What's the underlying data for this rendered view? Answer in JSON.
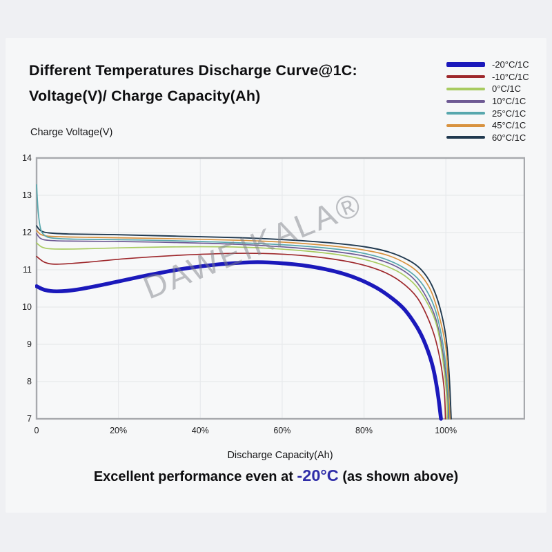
{
  "header": {
    "title_line1": "Different Temperatures Discharge Curve@1C:",
    "title_line2": "Voltage(V)/ Charge Capacity(Ah)"
  },
  "axes": {
    "y_label": "Charge Voltage(V)",
    "x_label": "Discharge Capacity(Ah)"
  },
  "watermark": {
    "text": "DAWEIKALA®"
  },
  "footer": {
    "prefix": "Excellent performance even at ",
    "highlight": "-20°C",
    "suffix": " (as shown above)"
  },
  "colors": {
    "accent_blue": "#2f2da8",
    "watermark_gray": "#80818a",
    "page_bg": "#eff0f3",
    "card_bg": "#f6f7f8",
    "plot_bg": "#f7f8f9",
    "grid": "#e7e9ec",
    "plot_border": "#a7a9ad",
    "text": "#0e0e10"
  },
  "chart_data": {
    "type": "line",
    "title": "Different Temperatures Discharge Curve@1C: Voltage(V)/ Charge Capacity(Ah)",
    "xlabel": "Discharge Capacity(Ah)",
    "ylabel": "Charge Voltage(V)",
    "xlim": [
      0,
      119
    ],
    "ylim": [
      7,
      14
    ],
    "grid": true,
    "legend_position": "top-right",
    "x_ticks": [
      {
        "value": 0,
        "label": "0"
      },
      {
        "value": 20,
        "label": "20%"
      },
      {
        "value": 40,
        "label": "40%"
      },
      {
        "value": 60,
        "label": "60%"
      },
      {
        "value": 80,
        "label": "80%"
      },
      {
        "value": 100,
        "label": "100%"
      }
    ],
    "y_ticks": [
      14,
      13,
      12,
      11,
      10,
      9,
      8,
      7
    ],
    "series": [
      {
        "name": "-20°C/1C",
        "color": "#1b19bb",
        "width": 5.5,
        "legend_swatch_height": 7,
        "points": [
          [
            0,
            10.56
          ],
          [
            2,
            10.46
          ],
          [
            5,
            10.42
          ],
          [
            10,
            10.47
          ],
          [
            18,
            10.64
          ],
          [
            27,
            10.85
          ],
          [
            36,
            11.03
          ],
          [
            45,
            11.15
          ],
          [
            52,
            11.2
          ],
          [
            58,
            11.19
          ],
          [
            65,
            11.12
          ],
          [
            72,
            10.98
          ],
          [
            78,
            10.78
          ],
          [
            83,
            10.52
          ],
          [
            87,
            10.22
          ],
          [
            90,
            9.92
          ],
          [
            93,
            9.45
          ],
          [
            95,
            9.0
          ],
          [
            96.8,
            8.4
          ],
          [
            98,
            7.7
          ],
          [
            98.8,
            7.0
          ]
        ]
      },
      {
        "name": "-10°C/1C",
        "color": "#9e282c",
        "width": 1.7,
        "legend_swatch_height": 4,
        "points": [
          [
            0,
            11.36
          ],
          [
            2,
            11.2
          ],
          [
            5,
            11.15
          ],
          [
            12,
            11.2
          ],
          [
            22,
            11.3
          ],
          [
            35,
            11.39
          ],
          [
            48,
            11.44
          ],
          [
            58,
            11.43
          ],
          [
            68,
            11.35
          ],
          [
            77,
            11.2
          ],
          [
            84,
            10.98
          ],
          [
            89,
            10.68
          ],
          [
            93,
            10.25
          ],
          [
            96,
            9.6
          ],
          [
            98,
            8.9
          ],
          [
            99.5,
            7.9
          ],
          [
            99.9,
            7.0
          ]
        ]
      },
      {
        "name": "0°C/1C",
        "color": "#a8cb60",
        "width": 1.7,
        "legend_swatch_height": 4,
        "points": [
          [
            0,
            11.72
          ],
          [
            1.5,
            11.6
          ],
          [
            4,
            11.56
          ],
          [
            10,
            11.56
          ],
          [
            25,
            11.6
          ],
          [
            40,
            11.62
          ],
          [
            52,
            11.6
          ],
          [
            64,
            11.52
          ],
          [
            74,
            11.4
          ],
          [
            82,
            11.22
          ],
          [
            88,
            10.97
          ],
          [
            92,
            10.65
          ],
          [
            95,
            10.2
          ],
          [
            97.5,
            9.6
          ],
          [
            99,
            8.8
          ],
          [
            100.2,
            7.6
          ],
          [
            100.3,
            7.0
          ]
        ]
      },
      {
        "name": "10°C/1C",
        "color": "#6e5a94",
        "width": 1.7,
        "legend_swatch_height": 4,
        "points": [
          [
            0,
            11.97
          ],
          [
            1,
            11.84
          ],
          [
            3,
            11.79
          ],
          [
            8,
            11.77
          ],
          [
            20,
            11.76
          ],
          [
            35,
            11.73
          ],
          [
            50,
            11.68
          ],
          [
            62,
            11.6
          ],
          [
            72,
            11.5
          ],
          [
            80,
            11.37
          ],
          [
            86,
            11.18
          ],
          [
            90,
            10.95
          ],
          [
            93,
            10.65
          ],
          [
            96,
            10.1
          ],
          [
            98,
            9.5
          ],
          [
            99.6,
            8.5
          ],
          [
            100.4,
            7.4
          ],
          [
            100.5,
            7.0
          ]
        ]
      },
      {
        "name": "25°C/1C",
        "color": "#57a7ad",
        "width": 1.7,
        "legend_swatch_height": 4,
        "points": [
          [
            0,
            13.28
          ],
          [
            0.4,
            12.55
          ],
          [
            1,
            12.1
          ],
          [
            2,
            11.92
          ],
          [
            4,
            11.85
          ],
          [
            10,
            11.82
          ],
          [
            25,
            11.8
          ],
          [
            40,
            11.76
          ],
          [
            55,
            11.7
          ],
          [
            67,
            11.62
          ],
          [
            77,
            11.5
          ],
          [
            84,
            11.33
          ],
          [
            89,
            11.1
          ],
          [
            93,
            10.78
          ],
          [
            96,
            10.3
          ],
          [
            98,
            9.7
          ],
          [
            99.7,
            8.7
          ],
          [
            100.5,
            7.6
          ],
          [
            100.7,
            7.0
          ]
        ]
      },
      {
        "name": "45°C/1C",
        "color": "#d8923f",
        "width": 1.7,
        "legend_swatch_height": 4,
        "points": [
          [
            0,
            12.06
          ],
          [
            1,
            11.95
          ],
          [
            3,
            11.9
          ],
          [
            8,
            11.88
          ],
          [
            20,
            11.86
          ],
          [
            35,
            11.83
          ],
          [
            50,
            11.79
          ],
          [
            62,
            11.73
          ],
          [
            72,
            11.64
          ],
          [
            80,
            11.53
          ],
          [
            86,
            11.38
          ],
          [
            91,
            11.12
          ],
          [
            94,
            10.84
          ],
          [
            96.5,
            10.4
          ],
          [
            98.5,
            9.7
          ],
          [
            100,
            8.9
          ],
          [
            100.6,
            7.9
          ],
          [
            101,
            7.0
          ]
        ]
      },
      {
        "name": "60°C/1C",
        "color": "#20394f",
        "width": 1.9,
        "legend_swatch_height": 4,
        "points": [
          [
            0,
            12.18
          ],
          [
            1,
            12.05
          ],
          [
            3,
            11.99
          ],
          [
            8,
            11.96
          ],
          [
            20,
            11.94
          ],
          [
            35,
            11.9
          ],
          [
            50,
            11.86
          ],
          [
            62,
            11.8
          ],
          [
            72,
            11.72
          ],
          [
            80,
            11.62
          ],
          [
            86,
            11.48
          ],
          [
            91,
            11.25
          ],
          [
            94,
            11.0
          ],
          [
            96.5,
            10.6
          ],
          [
            98.5,
            10.0
          ],
          [
            100,
            9.2
          ],
          [
            100.8,
            8.2
          ],
          [
            101.3,
            7.0
          ]
        ]
      }
    ]
  }
}
